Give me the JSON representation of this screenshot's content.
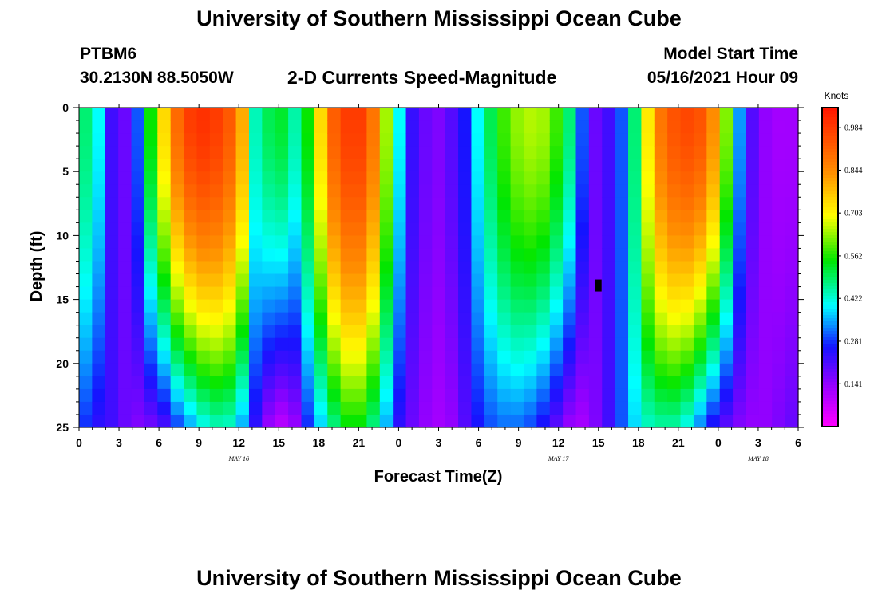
{
  "header": {
    "title": "University of Southern Mississippi Ocean Cube",
    "station": "PTBM6",
    "coords": "30.2130N  88.5050W",
    "subtitle": "2-D Currents Speed-Magnitude",
    "model_label": "Model Start Time",
    "model_time": "05/16/2021 Hour 09"
  },
  "footer": {
    "title": "University of Southern Mississippi Ocean Cube"
  },
  "chart_data": {
    "type": "heatmap",
    "title": "2-D Currents Speed-Magnitude",
    "xlabel": "Forecast Time(Z)",
    "ylabel": "Depth (ft)",
    "units": "Knots",
    "x_ticks": [
      "0",
      "3",
      "6",
      "9",
      "12",
      "15",
      "18",
      "21",
      "0",
      "3",
      "6",
      "9",
      "12",
      "15",
      "18",
      "21",
      "0",
      "3",
      "6"
    ],
    "x_hours": [
      0,
      3,
      6,
      9,
      12,
      15,
      18,
      21,
      24,
      27,
      30,
      33,
      36,
      39,
      42,
      45,
      48,
      51,
      54
    ],
    "date_labels": [
      {
        "text": "MAY 16",
        "hour": 12
      },
      {
        "text": "MAY 17",
        "hour": 36
      },
      {
        "text": "MAY 18",
        "hour": 51
      }
    ],
    "y_ticks": [
      "0",
      "5",
      "10",
      "15",
      "20",
      "25"
    ],
    "ylim": [
      0,
      25
    ],
    "xlim": [
      0,
      54
    ],
    "colorbar": {
      "labels": [
        "0.984",
        "0.844",
        "0.703",
        "0.562",
        "0.422",
        "0.281",
        "0.141"
      ],
      "min": 0.0,
      "max": 1.05
    },
    "surface_speed_by_hour": [
      0.48,
      0.4,
      0.22,
      0.18,
      0.3,
      0.55,
      0.74,
      0.9,
      0.98,
      1.0,
      0.98,
      0.93,
      0.8,
      0.44,
      0.5,
      0.52,
      0.45,
      0.55,
      0.74,
      0.92,
      0.98,
      0.98,
      0.88,
      0.64,
      0.4,
      0.23,
      0.18,
      0.16,
      0.2,
      0.26,
      0.4,
      0.5,
      0.58,
      0.63,
      0.65,
      0.64,
      0.58,
      0.48,
      0.3,
      0.18,
      0.22,
      0.3,
      0.48,
      0.72,
      0.88,
      0.94,
      0.96,
      0.94,
      0.84,
      0.62,
      0.34,
      0.2,
      0.14,
      0.12,
      0.12
    ],
    "bottom_speed_by_hour": [
      0.28,
      0.24,
      0.22,
      0.18,
      0.16,
      0.18,
      0.22,
      0.3,
      0.36,
      0.42,
      0.45,
      0.44,
      0.36,
      0.24,
      0.14,
      0.1,
      0.14,
      0.28,
      0.38,
      0.48,
      0.55,
      0.55,
      0.48,
      0.36,
      0.24,
      0.18,
      0.14,
      0.12,
      0.14,
      0.2,
      0.26,
      0.3,
      0.32,
      0.32,
      0.3,
      0.26,
      0.2,
      0.14,
      0.12,
      0.16,
      0.22,
      0.3,
      0.38,
      0.44,
      0.46,
      0.46,
      0.42,
      0.34,
      0.26,
      0.2,
      0.16,
      0.14,
      0.14,
      0.16,
      0.18
    ],
    "marker": {
      "hour": 39,
      "depth": 14
    }
  }
}
